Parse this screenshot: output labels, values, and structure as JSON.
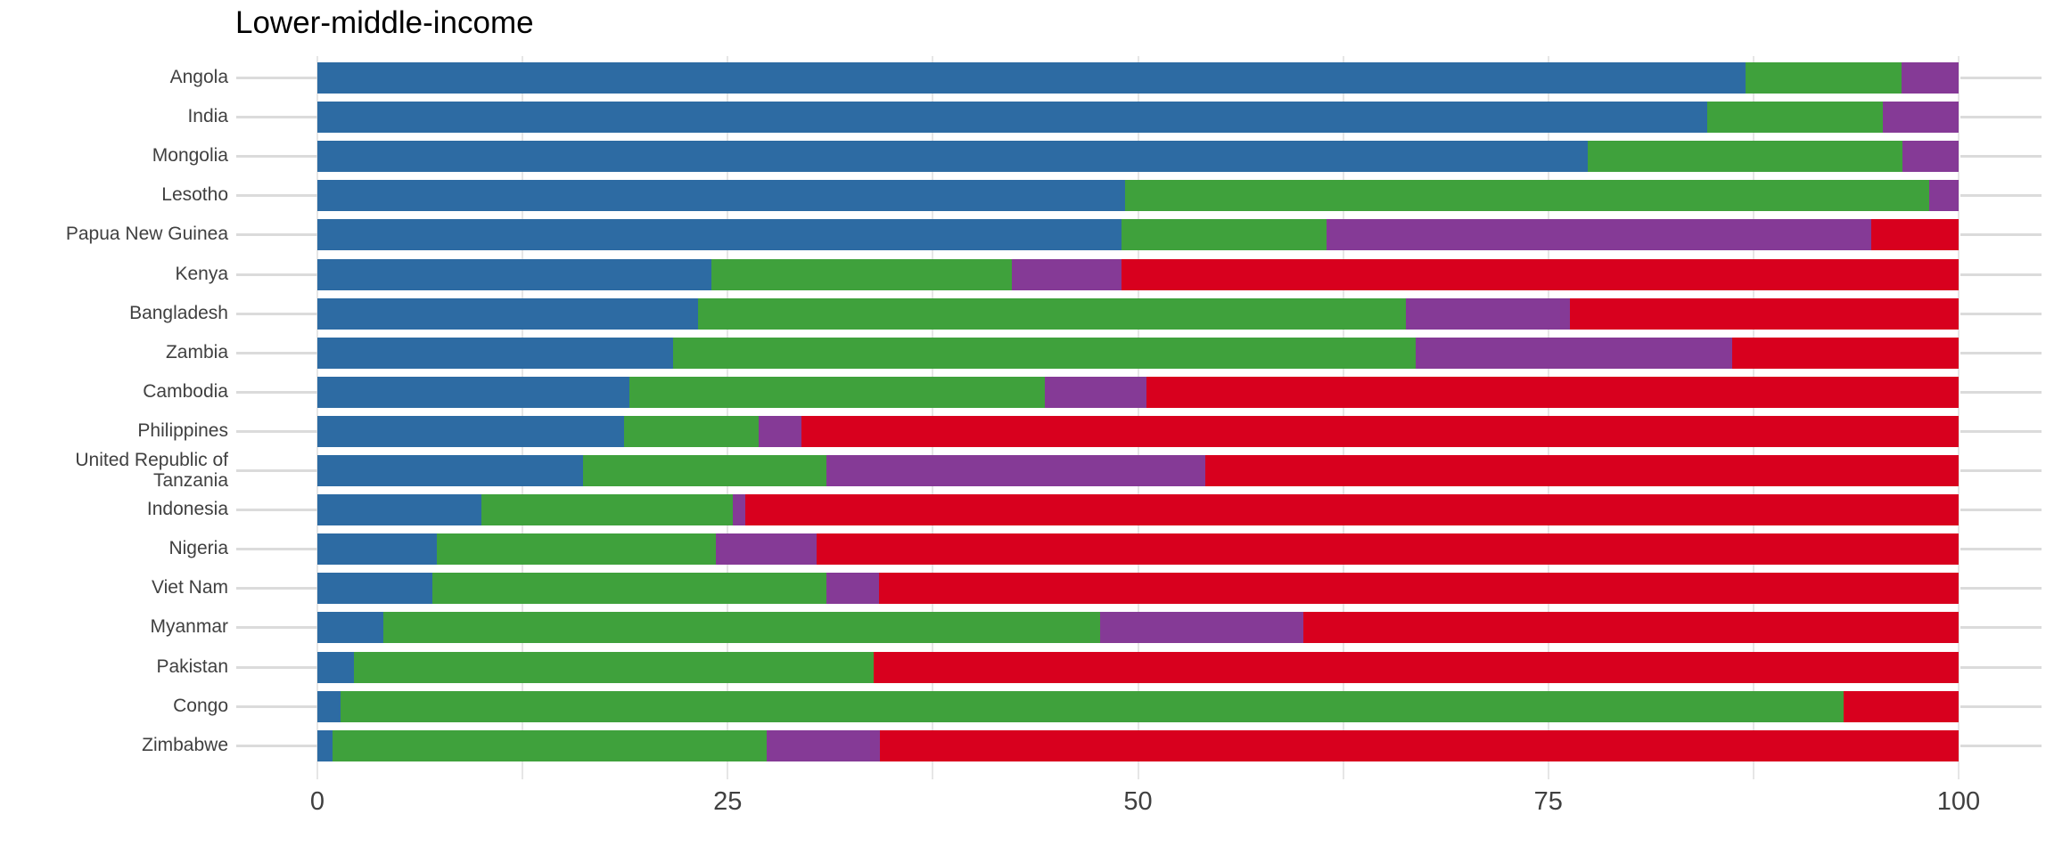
{
  "page": {
    "background_color": "#ffffff"
  },
  "chart_data": {
    "type": "bar",
    "stacked": true,
    "orientation": "horizontal",
    "title": "Lower-middle-income",
    "xlabel": "",
    "ylabel": "",
    "xlim": [
      0,
      100
    ],
    "x_major_ticks": [
      0,
      25,
      50,
      75,
      100
    ],
    "x_tick_labels": [
      "0",
      "25",
      "50",
      "75",
      "100"
    ],
    "x_gridline_step": 12.5,
    "grid": true,
    "legend": "none",
    "series_names": [
      "blue",
      "green",
      "purple",
      "red"
    ],
    "series_colors": [
      "#2d6ba3",
      "#3fa13c",
      "#853a96",
      "#d8001e"
    ],
    "categories": [
      "Angola",
      "India",
      "Mongolia",
      "Lesotho",
      "Papua New Guinea",
      "Kenya",
      "Bangladesh",
      "Zambia",
      "Cambodia",
      "Philippines",
      "United Republic of Tanzania",
      "Indonesia",
      "Nigeria",
      "Viet Nam",
      "Myanmar",
      "Pakistan",
      "Congo",
      "Zimbabwe"
    ],
    "rows": [
      {
        "category": "Angola",
        "values": [
          87.0,
          9.5,
          3.5,
          0.0
        ]
      },
      {
        "category": "India",
        "values": [
          84.7,
          10.7,
          4.6,
          0.0
        ]
      },
      {
        "category": "Mongolia",
        "values": [
          77.4,
          19.2,
          3.4,
          0.0
        ]
      },
      {
        "category": "Lesotho",
        "values": [
          49.2,
          49.0,
          1.8,
          0.0
        ]
      },
      {
        "category": "Papua New Guinea",
        "values": [
          49.0,
          12.5,
          33.2,
          5.3
        ]
      },
      {
        "category": "Kenya",
        "values": [
          24.0,
          18.3,
          6.7,
          51.0
        ]
      },
      {
        "category": "Bangladesh",
        "values": [
          23.2,
          43.1,
          10.0,
          23.7
        ]
      },
      {
        "category": "Zambia",
        "values": [
          21.7,
          45.2,
          19.3,
          13.8
        ]
      },
      {
        "category": "Cambodia",
        "values": [
          19.0,
          25.3,
          6.2,
          49.5
        ]
      },
      {
        "category": "Philippines",
        "values": [
          18.7,
          8.2,
          2.6,
          70.5
        ]
      },
      {
        "category": "United Republic of Tanzania",
        "label_lines": [
          "United Republic of",
          "Tanzania"
        ],
        "values": [
          16.2,
          14.8,
          23.1,
          45.9
        ]
      },
      {
        "category": "Indonesia",
        "values": [
          10.0,
          15.3,
          0.8,
          73.9
        ]
      },
      {
        "category": "Nigeria",
        "values": [
          7.3,
          17.0,
          6.1,
          69.6
        ]
      },
      {
        "category": "Viet Nam",
        "values": [
          7.0,
          24.0,
          3.2,
          65.8
        ]
      },
      {
        "category": "Myanmar",
        "values": [
          4.0,
          43.7,
          12.4,
          39.9
        ]
      },
      {
        "category": "Pakistan",
        "values": [
          2.2,
          31.7,
          0.0,
          66.1
        ]
      },
      {
        "category": "Congo",
        "values": [
          1.4,
          91.6,
          0.0,
          7.0
        ]
      },
      {
        "category": "Zimbabwe",
        "values": [
          0.9,
          26.5,
          6.9,
          65.7
        ]
      }
    ],
    "axis_colors": {
      "gridline": "#e6e6e6",
      "tick_line": "#dbdbdb",
      "tick_text": "#404040",
      "label_text": "#404040",
      "title_text": "#000000"
    }
  }
}
